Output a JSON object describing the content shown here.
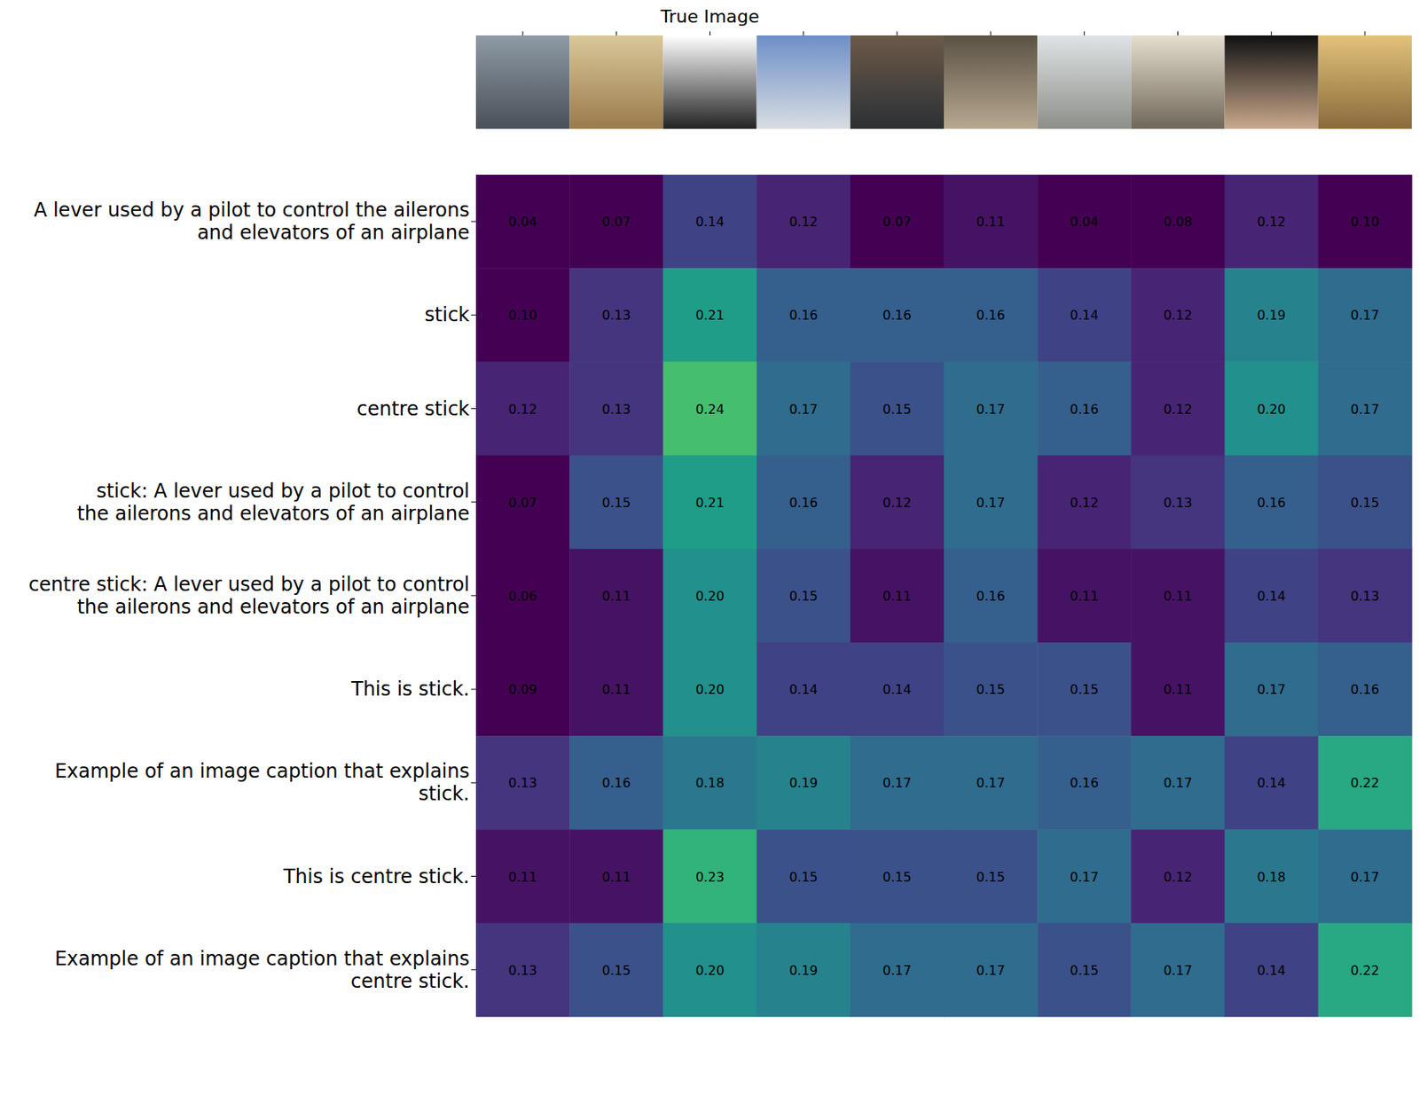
{
  "chart_data": {
    "type": "heatmap",
    "title": "True Image",
    "true_column": 2,
    "rows": [
      "A lever used by a pilot to control the ailerons\nand elevators of an airplane",
      "stick",
      "centre stick",
      "stick: A lever used by a pilot to control\nthe ailerons and elevators of an airplane",
      "centre stick: A lever used by a pilot to control\nthe ailerons and elevators of an airplane",
      "This is stick.",
      "Example of an image caption that explains\nstick.",
      "This is centre stick.",
      "Example of an image caption that explains\ncentre stick."
    ],
    "cells": [
      [
        0.04,
        0.07,
        0.14,
        0.12,
        0.07,
        0.11,
        0.04,
        0.08,
        0.12,
        0.1
      ],
      [
        0.1,
        0.13,
        0.21,
        0.16,
        0.16,
        0.16,
        0.14,
        0.12,
        0.19,
        0.17
      ],
      [
        0.12,
        0.13,
        0.24,
        0.17,
        0.15,
        0.17,
        0.16,
        0.12,
        0.2,
        0.17
      ],
      [
        0.07,
        0.15,
        0.21,
        0.16,
        0.12,
        0.17,
        0.12,
        0.13,
        0.16,
        0.15
      ],
      [
        0.06,
        0.11,
        0.2,
        0.15,
        0.11,
        0.16,
        0.11,
        0.11,
        0.14,
        0.13
      ],
      [
        0.09,
        0.11,
        0.2,
        0.14,
        0.14,
        0.15,
        0.15,
        0.11,
        0.17,
        0.16
      ],
      [
        0.13,
        0.16,
        0.18,
        0.19,
        0.17,
        0.17,
        0.16,
        0.17,
        0.14,
        0.22
      ],
      [
        0.11,
        0.11,
        0.23,
        0.15,
        0.15,
        0.15,
        0.17,
        0.12,
        0.18,
        0.17
      ],
      [
        0.13,
        0.15,
        0.2,
        0.19,
        0.17,
        0.17,
        0.15,
        0.17,
        0.14,
        0.22
      ]
    ],
    "value_labels": [
      [
        "0.04",
        "0.07",
        "0.14",
        "0.12",
        "0.07",
        "0.11",
        "0.04",
        "0.08",
        "0.12",
        "0.10"
      ],
      [
        "0.10",
        "0.13",
        "0.21",
        "0.16",
        "0.16",
        "0.16",
        "0.14",
        "0.12",
        "0.19",
        "0.17"
      ],
      [
        "0.12",
        "0.13",
        "0.24",
        "0.17",
        "0.15",
        "0.17",
        "0.16",
        "0.12",
        "0.20",
        "0.17"
      ],
      [
        "0.07",
        "0.15",
        "0.21",
        "0.16",
        "0.12",
        "0.17",
        "0.12",
        "0.13",
        "0.16",
        "0.15"
      ],
      [
        "0.06",
        "0.11",
        "0.20",
        "0.15",
        "0.11",
        "0.16",
        "0.11",
        "0.11",
        "0.14",
        "0.13"
      ],
      [
        "0.09",
        "0.11",
        "0.20",
        "0.14",
        "0.14",
        "0.15",
        "0.15",
        "0.11",
        "0.17",
        "0.16"
      ],
      [
        "0.13",
        "0.16",
        "0.18",
        "0.19",
        "0.17",
        "0.17",
        "0.16",
        "0.17",
        "0.14",
        "0.22"
      ],
      [
        "0.11",
        "0.11",
        "0.23",
        "0.15",
        "0.15",
        "0.15",
        "0.17",
        "0.12",
        "0.18",
        "0.17"
      ],
      [
        "0.13",
        "0.15",
        "0.20",
        "0.19",
        "0.17",
        "0.17",
        "0.15",
        "0.17",
        "0.14",
        "0.22"
      ]
    ],
    "data_labels": true,
    "color_range": [
      0.1,
      0.3
    ]
  }
}
